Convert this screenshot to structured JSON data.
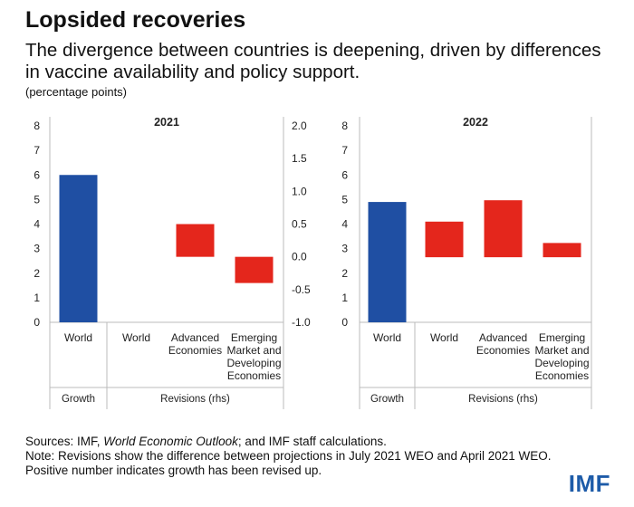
{
  "header": {
    "title": "Lopsided recoveries",
    "subtitle": "The divergence between countries is deepening, driven by differences in vaccine availability and policy support.",
    "unit": "(percentage points)"
  },
  "footer": {
    "source_prefix": "Sources: IMF, ",
    "source_italic": "World Economic Outlook",
    "source_suffix": "; and IMF staff calculations.",
    "note": "Note: Revisions show the difference between projections in July 2021 WEO and April 2021 WEO.",
    "note2": "Positive number indicates growth has been revised up."
  },
  "brand": {
    "logo": "IMF",
    "logo_color": "#1d5ba8"
  },
  "colors": {
    "growth": "#1f4fa3",
    "revision": "#e4261c"
  },
  "chart_data": [
    {
      "type": "bar",
      "title": "2021",
      "ylim_left": [
        0,
        8
      ],
      "yticks_left": [
        "0",
        "1",
        "2",
        "3",
        "4",
        "5",
        "6",
        "7",
        "8"
      ],
      "ylim_right": [
        -1.0,
        2.0
      ],
      "yticks_right": [
        "-1.0",
        "-0.5",
        "0.0",
        "0.5",
        "1.0",
        "1.5",
        "2.0"
      ],
      "growth": {
        "group_label": "Growth",
        "category": "World",
        "value": 6.0
      },
      "revisions": {
        "group_label": "Revisions (rhs)",
        "categories": [
          "World",
          "Advanced Economies",
          "Emerging Market and Developing Economies"
        ],
        "category_lines": [
          [
            "World"
          ],
          [
            "Advanced",
            "Economies"
          ],
          [
            "Emerging",
            "Market and",
            "Developing",
            "Economies"
          ]
        ],
        "values": [
          0.0,
          0.5,
          -0.4
        ]
      }
    },
    {
      "type": "bar",
      "title": "2022",
      "ylim_left": [
        0,
        8
      ],
      "yticks_left": [
        "0",
        "1",
        "2",
        "3",
        "4",
        "5",
        "6",
        "7",
        "8"
      ],
      "growth": {
        "group_label": "Growth",
        "category": "World",
        "value": 4.9
      },
      "revisions": {
        "group_label": "Revisions (rhs)",
        "categories": [
          "World",
          "Advanced Economies",
          "Emerging Market and Developing Economies"
        ],
        "category_lines": [
          [
            "World"
          ],
          [
            "Advanced",
            "Economies"
          ],
          [
            "Emerging",
            "Market and",
            "Developing",
            "Economies"
          ]
        ],
        "values": [
          0.5,
          0.8,
          0.2
        ]
      }
    }
  ]
}
